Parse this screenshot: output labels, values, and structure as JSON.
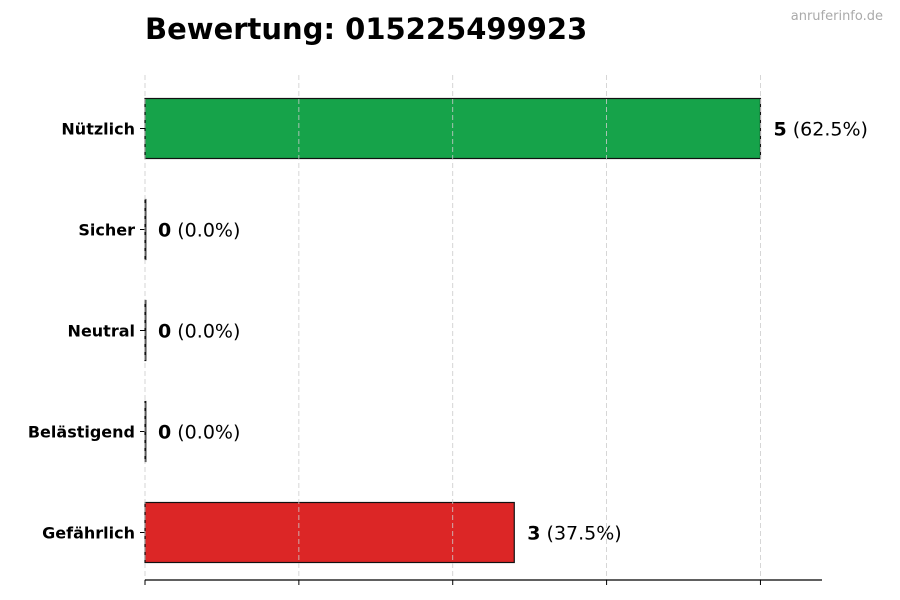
{
  "chart_data": {
    "type": "bar",
    "orientation": "horizontal",
    "title": "Bewertung: 015225499923",
    "categories": [
      "Nützlich",
      "Sicher",
      "Neutral",
      "Belästigend",
      "Gefährlich"
    ],
    "values": [
      5,
      0,
      0,
      0,
      3
    ],
    "labels": [
      {
        "count": "5",
        "percent": "(62.5%)"
      },
      {
        "count": "0",
        "percent": "(0.0%)"
      },
      {
        "count": "0",
        "percent": "(0.0%)"
      },
      {
        "count": "0",
        "percent": "(0.0%)"
      },
      {
        "count": "3",
        "percent": "(37.5%)"
      }
    ],
    "colors": [
      "#16a34a",
      "#16a34a",
      "#9ca3af",
      "#f97316",
      "#dc2626"
    ],
    "xlim": [
      0,
      5.5
    ],
    "xticks": [
      0,
      1.25,
      2.5,
      3.75,
      5
    ],
    "grid": "x-dashed",
    "xlabel": "",
    "ylabel": ""
  },
  "watermark": "anruferinfo.de"
}
